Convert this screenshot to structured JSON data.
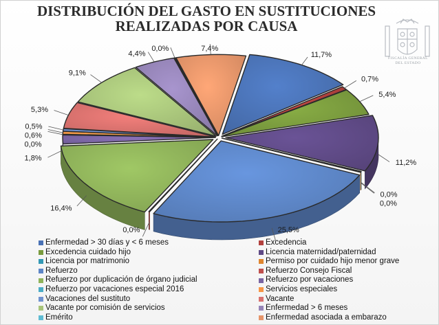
{
  "title_line1": "DISTRIBUCIÓN DEL GASTO EN SUSTITUCIONES",
  "title_line2": "REALIZADAS POR CAUSA",
  "seal_text_line1": "FISCALÍA GENERAL",
  "seal_text_line2": "DEL ESTADO",
  "chart_data": {
    "type": "pie",
    "title": "DISTRIBUCIÓN DEL GASTO EN SUSTITUCIONES REALIZADAS POR CAUSA",
    "unit": "%",
    "legend_position": "bottom",
    "slices": [
      {
        "name": "Enfermedad > 30 días y < 6 meses",
        "value": 11.7,
        "label": "11,7%",
        "color": "#4a72b5"
      },
      {
        "name": "Excedencia",
        "value": 0.7,
        "label": "0,7%",
        "color": "#b2413e"
      },
      {
        "name": "Excedencia cuidado hijo",
        "value": 5.4,
        "label": "5,4%",
        "color": "#7a9b3e"
      },
      {
        "name": "Licencia maternidad/paternidad",
        "value": 11.2,
        "label": "11,2%",
        "color": "#5f4a86"
      },
      {
        "name": "Licencia por matrimonio",
        "value": 0.0,
        "label": "0,0%",
        "color": "#3399b5"
      },
      {
        "name": "Permiso por cuidado hijo menor grave",
        "value": 0.0,
        "label": "0,0%",
        "color": "#e0862f"
      },
      {
        "name": "Refuerzo",
        "value": 25.5,
        "label": "25,5%",
        "color": "#5d86c7"
      },
      {
        "name": "Refuerzo Consejo Fiscal",
        "value": 0.0,
        "label": "0,0%",
        "color": "#c0504d"
      },
      {
        "name": "Refuerzo por duplicación de órgano judicial",
        "value": 16.4,
        "label": "16,4%",
        "color": "#8fb35a"
      },
      {
        "name": "Refuerzo por vacaciones",
        "value": 1.8,
        "label": "1,8%",
        "color": "#7a65a3"
      },
      {
        "name": "Refuerzo por vacaciones especial 2016",
        "value": 0.0,
        "label": "0,0%",
        "color": "#4bacc6"
      },
      {
        "name": "Servicios especiales",
        "value": 0.6,
        "label": "0,6%",
        "color": "#f79646"
      },
      {
        "name": "Vacaciones del sustituto",
        "value": 0.5,
        "label": "0,5%",
        "color": "#6f92cf"
      },
      {
        "name": "Vacante",
        "value": 5.3,
        "label": "5,3%",
        "color": "#d9716e"
      },
      {
        "name": "Vacante por comisión de servicios",
        "value": 9.1,
        "label": "9,1%",
        "color": "#a8c47a"
      },
      {
        "name": "Enfermedad > 6 meses",
        "value": 4.4,
        "label": "4,4%",
        "color": "#9685b8"
      },
      {
        "name": "Emérito",
        "value": 0.0,
        "label": "0,0%",
        "color": "#5fbcd3"
      },
      {
        "name": "Enfermedad asociada a embarazo",
        "value": 7.4,
        "label": "7,4%",
        "color": "#e6956a"
      }
    ]
  }
}
